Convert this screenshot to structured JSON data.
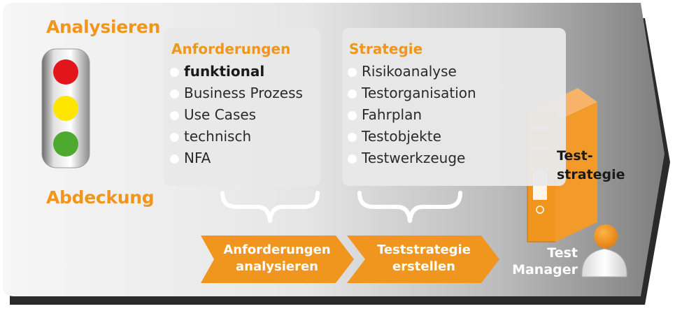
{
  "headings": {
    "top": "Analysieren",
    "bottom": "Abdeckung"
  },
  "traffic_light": {
    "colors": [
      "#e3141a",
      "#ffe600",
      "#4ea92f"
    ]
  },
  "requirements_panel": {
    "title": "Anforderungen",
    "items": [
      {
        "label": "funktional",
        "bold": true
      },
      {
        "label": "Business Prozess",
        "bold": false
      },
      {
        "label": "Use Cases",
        "bold": false
      },
      {
        "label": "technisch",
        "bold": false
      },
      {
        "label": "NFA",
        "bold": false
      }
    ]
  },
  "strategy_panel": {
    "title": "Strategie",
    "items": [
      {
        "label": "Risikoanalyse"
      },
      {
        "label": "Testorganisation"
      },
      {
        "label": "Fahrplan"
      },
      {
        "label": "Testobjekte"
      },
      {
        "label": "Testwerkzeuge"
      }
    ]
  },
  "process_steps": [
    {
      "line1": "Anforderungen",
      "line2": "analysieren"
    },
    {
      "line1": "Teststrategie",
      "line2": "erstellen"
    }
  ],
  "binder": {
    "line1": "Test-",
    "line2": "strategie"
  },
  "manager": {
    "line1": "Test",
    "line2": "Manager"
  },
  "colors": {
    "accent": "#f0961e",
    "background_light": "#f4f4f4",
    "background_dark": "#8a8a8a"
  }
}
